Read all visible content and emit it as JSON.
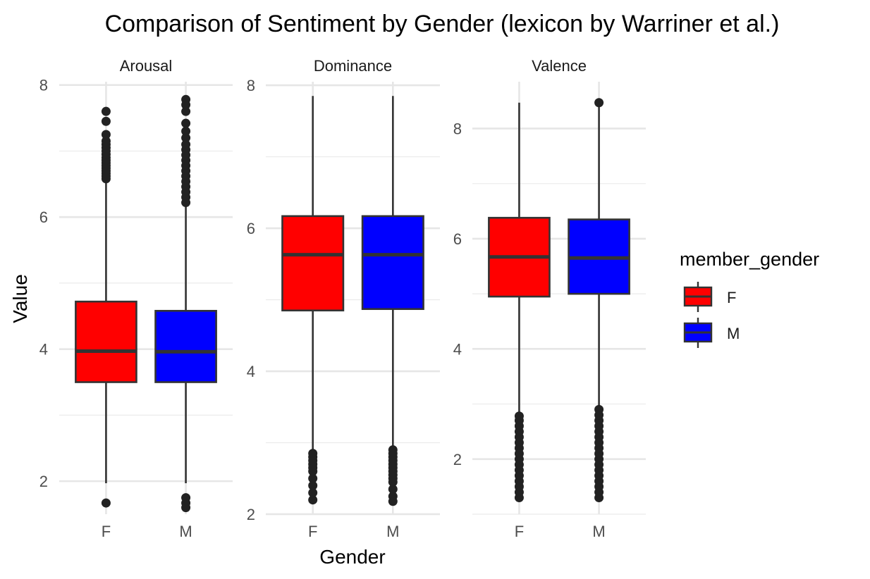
{
  "chart_data": {
    "type": "boxplot",
    "title": "Comparison of Sentiment by Gender (lexicon by Warriner et al.)",
    "xlabel": "Gender",
    "ylabel": "Value",
    "categories": [
      "F",
      "M"
    ],
    "legend": {
      "title": "member_gender",
      "position": "right",
      "entries": [
        {
          "label": "F",
          "color": "#ff0000"
        },
        {
          "label": "M",
          "color": "#0000ff"
        }
      ]
    },
    "grid": true,
    "facets": [
      {
        "name": "Arousal",
        "ylim": [
          1.5,
          8.05
        ],
        "yticks": [
          2,
          4,
          6,
          8
        ],
        "boxes": [
          {
            "category": "F",
            "whisker_low": 1.97,
            "q1": 3.5,
            "median": 3.97,
            "q3": 4.72,
            "whisker_high": 6.55,
            "outliers": [
              1.67,
              6.58,
              6.62,
              6.66,
              6.7,
              6.74,
              6.78,
              6.82,
              6.86,
              6.9,
              6.95,
              7.0,
              7.05,
              7.1,
              7.15,
              7.25,
              7.45,
              7.6
            ]
          },
          {
            "category": "M",
            "whisker_low": 1.97,
            "q1": 3.5,
            "median": 3.96,
            "q3": 4.58,
            "whisker_high": 6.2,
            "outliers": [
              1.6,
              1.67,
              1.75,
              6.22,
              6.3,
              6.38,
              6.46,
              6.54,
              6.62,
              6.7,
              6.78,
              6.86,
              6.94,
              7.02,
              7.1,
              7.2,
              7.3,
              7.42,
              7.6,
              7.7,
              7.78
            ]
          }
        ]
      },
      {
        "name": "Dominance",
        "ylim": [
          2.0,
          8.05
        ],
        "yticks": [
          2,
          4,
          6,
          8
        ],
        "boxes": [
          {
            "category": "F",
            "whisker_low": 2.9,
            "q1": 4.85,
            "median": 5.63,
            "q3": 6.17,
            "whisker_high": 7.85,
            "outliers": [
              2.2,
              2.3,
              2.4,
              2.5,
              2.6,
              2.65,
              2.7,
              2.75,
              2.8,
              2.85
            ]
          },
          {
            "category": "M",
            "whisker_low": 2.95,
            "q1": 4.87,
            "median": 5.63,
            "q3": 6.17,
            "whisker_high": 7.85,
            "outliers": [
              2.18,
              2.25,
              2.35,
              2.45,
              2.5,
              2.55,
              2.6,
              2.65,
              2.7,
              2.75,
              2.8,
              2.85,
              2.9
            ]
          }
        ]
      },
      {
        "name": "Valence",
        "ylim": [
          1.0,
          8.85
        ],
        "yticks": [
          2,
          4,
          6,
          8
        ],
        "boxes": [
          {
            "category": "F",
            "whisker_low": 2.8,
            "q1": 4.95,
            "median": 5.67,
            "q3": 6.38,
            "whisker_high": 8.47,
            "outliers": [
              1.3,
              1.4,
              1.5,
              1.6,
              1.7,
              1.8,
              1.9,
              2.0,
              2.1,
              2.2,
              2.3,
              2.4,
              2.5,
              2.6,
              2.7,
              2.78
            ]
          },
          {
            "category": "M",
            "whisker_low": 2.95,
            "q1": 5.0,
            "median": 5.65,
            "q3": 6.35,
            "whisker_high": 8.4,
            "outliers": [
              1.3,
              1.4,
              1.5,
              1.6,
              1.7,
              1.8,
              1.9,
              2.0,
              2.1,
              2.2,
              2.3,
              2.4,
              2.5,
              2.6,
              2.7,
              2.8,
              2.9,
              8.47
            ]
          }
        ]
      }
    ]
  }
}
